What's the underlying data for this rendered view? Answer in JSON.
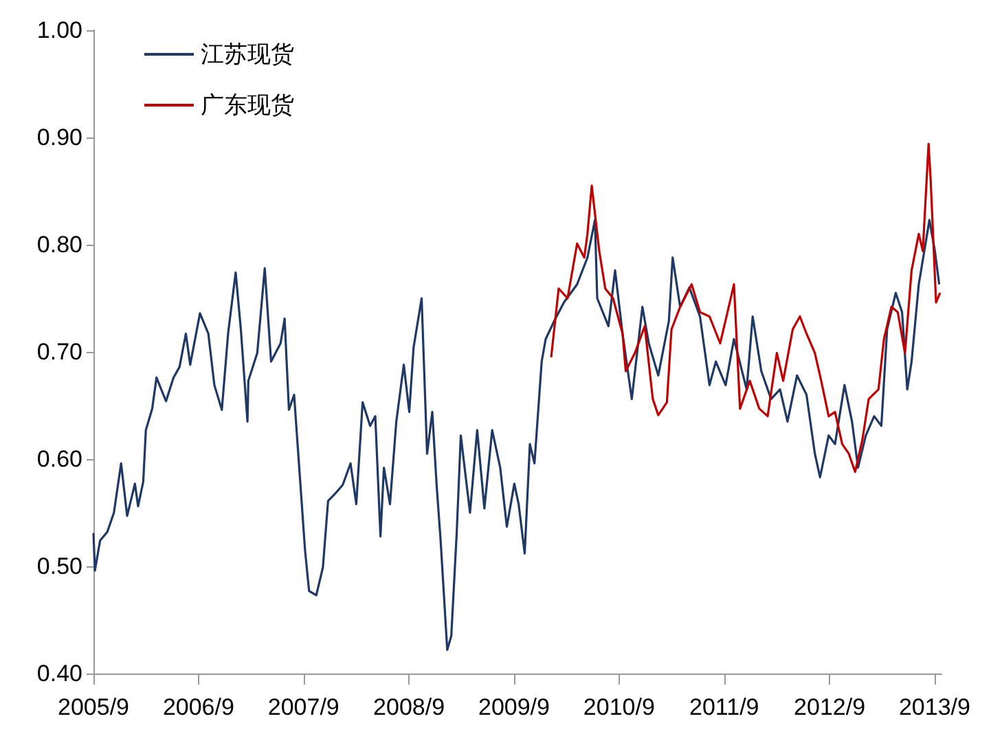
{
  "chart_data": {
    "type": "line",
    "xlim": [
      "2005-09-01",
      "2013-09-25"
    ],
    "ylim": [
      0.4,
      1.0
    ],
    "xticks": [
      {
        "value": "2005-09-01",
        "label": "2005/9"
      },
      {
        "value": "2006-09-01",
        "label": "2006/9"
      },
      {
        "value": "2007-09-01",
        "label": "2007/9"
      },
      {
        "value": "2008-09-01",
        "label": "2008/9"
      },
      {
        "value": "2009-09-01",
        "label": "2009/9"
      },
      {
        "value": "2010-09-01",
        "label": "2010/9"
      },
      {
        "value": "2011-09-01",
        "label": "2011/9"
      },
      {
        "value": "2012-09-01",
        "label": "2012/9"
      },
      {
        "value": "2013-09-01",
        "label": "2013/9"
      }
    ],
    "yticks": [
      {
        "value": 0.4,
        "label": "0.40"
      },
      {
        "value": 0.5,
        "label": "0.50"
      },
      {
        "value": 0.6,
        "label": "0.60"
      },
      {
        "value": 0.7,
        "label": "0.70"
      },
      {
        "value": 0.8,
        "label": "0.80"
      },
      {
        "value": 0.9,
        "label": "0.90"
      },
      {
        "value": 1.0,
        "label": "1.00"
      }
    ],
    "grid": false,
    "legend": "top left",
    "marker": "none",
    "line_style": "solid",
    "series": [
      {
        "name": "江苏现货",
        "color": "#1f3864",
        "x": [
          "2005-09-01",
          "2005-09-06",
          "2005-09-24",
          "2005-10-19",
          "2005-11-11",
          "2005-12-06",
          "2005-12-27",
          "2006-01-23",
          "2006-02-03",
          "2006-02-21",
          "2006-03-02",
          "2006-03-24",
          "2006-04-08",
          "2006-05-11",
          "2006-06-06",
          "2006-06-27",
          "2006-07-19",
          "2006-08-03",
          "2006-09-06",
          "2006-10-05",
          "2006-10-26",
          "2006-11-21",
          "2006-12-13",
          "2007-01-08",
          "2007-01-26",
          "2007-02-18",
          "2007-02-21",
          "2007-03-24",
          "2007-04-19",
          "2007-05-11",
          "2007-06-13",
          "2007-06-27",
          "2007-07-12",
          "2007-07-30",
          "2007-08-21",
          "2007-09-06",
          "2007-09-20",
          "2007-10-15",
          "2007-11-07",
          "2007-11-25",
          "2007-12-17",
          "2008-01-15",
          "2008-02-11",
          "2008-03-02",
          "2008-03-24",
          "2008-04-19",
          "2008-05-07",
          "2008-05-25",
          "2008-06-06",
          "2008-06-27",
          "2008-07-19",
          "2008-08-14",
          "2008-09-02",
          "2008-09-17",
          "2008-10-15",
          "2008-11-03",
          "2008-11-21",
          "2008-12-06",
          "2008-12-20",
          "2009-01-12",
          "2009-01-26",
          "2009-02-14",
          "2009-02-28",
          "2009-04-01",
          "2009-04-26",
          "2009-05-21",
          "2009-06-17",
          "2009-07-15",
          "2009-08-07",
          "2009-09-02",
          "2009-09-17",
          "2009-10-08",
          "2009-10-26",
          "2009-11-11",
          "2009-12-06",
          "2009-12-20",
          "2010-01-19",
          "2010-02-21",
          "2010-04-08",
          "2010-05-14",
          "2010-06-09",
          "2010-06-17",
          "2010-07-26",
          "2010-08-18",
          "2010-09-13",
          "2010-10-15",
          "2010-11-21",
          "2010-12-13",
          "2011-01-15",
          "2011-02-21",
          "2011-03-06",
          "2011-04-01",
          "2011-05-03",
          "2011-06-09",
          "2011-07-12",
          "2011-08-03",
          "2011-09-06",
          "2011-10-05",
          "2011-11-18",
          "2011-12-09",
          "2012-01-08",
          "2012-02-11",
          "2012-03-13",
          "2012-04-08",
          "2012-05-11",
          "2012-06-13",
          "2012-07-12",
          "2012-07-30",
          "2012-08-29",
          "2012-09-20",
          "2012-10-23",
          "2012-11-18",
          "2012-12-09",
          "2013-01-05",
          "2013-02-03",
          "2013-02-28",
          "2013-03-20",
          "2013-04-19",
          "2013-05-11",
          "2013-05-29",
          "2013-06-13",
          "2013-07-08",
          "2013-08-14",
          "2013-09-02",
          "2013-09-17"
        ],
        "values": [
          0.531,
          0.496,
          0.524,
          0.532,
          0.55,
          0.596,
          0.547,
          0.577,
          0.556,
          0.579,
          0.627,
          0.647,
          0.676,
          0.654,
          0.676,
          0.686,
          0.717,
          0.688,
          0.736,
          0.717,
          0.669,
          0.646,
          0.718,
          0.774,
          0.721,
          0.635,
          0.673,
          0.699,
          0.778,
          0.691,
          0.708,
          0.731,
          0.646,
          0.66,
          0.576,
          0.515,
          0.477,
          0.473,
          0.499,
          0.561,
          0.567,
          0.576,
          0.596,
          0.558,
          0.653,
          0.631,
          0.64,
          0.528,
          0.592,
          0.558,
          0.635,
          0.688,
          0.644,
          0.704,
          0.75,
          0.605,
          0.644,
          0.576,
          0.524,
          0.422,
          0.435,
          0.532,
          0.622,
          0.55,
          0.627,
          0.554,
          0.627,
          0.592,
          0.537,
          0.577,
          0.558,
          0.512,
          0.614,
          0.596,
          0.691,
          0.712,
          0.729,
          0.746,
          0.763,
          0.788,
          0.823,
          0.75,
          0.724,
          0.776,
          0.717,
          0.656,
          0.742,
          0.708,
          0.678,
          0.729,
          0.788,
          0.742,
          0.76,
          0.733,
          0.669,
          0.691,
          0.669,
          0.712,
          0.665,
          0.733,
          0.682,
          0.656,
          0.665,
          0.635,
          0.678,
          0.66,
          0.605,
          0.583,
          0.622,
          0.614,
          0.669,
          0.635,
          0.592,
          0.622,
          0.64,
          0.631,
          0.721,
          0.755,
          0.737,
          0.665,
          0.691,
          0.763,
          0.823,
          0.794,
          0.763
        ]
      },
      {
        "name": "广东现货",
        "color": "#c00000",
        "x": [
          "2010-01-08",
          "2010-02-03",
          "2010-03-06",
          "2010-04-08",
          "2010-05-03",
          "2010-05-14",
          "2010-05-29",
          "2010-06-24",
          "2010-07-15",
          "2010-08-11",
          "2010-09-13",
          "2010-09-24",
          "2010-10-26",
          "2010-11-29",
          "2010-12-27",
          "2011-01-15",
          "2011-02-14",
          "2011-03-02",
          "2011-04-01",
          "2011-05-11",
          "2011-06-09",
          "2011-07-12",
          "2011-08-18",
          "2011-09-09",
          "2011-10-05",
          "2011-10-26",
          "2011-11-29",
          "2012-01-01",
          "2012-01-30",
          "2012-03-02",
          "2012-03-24",
          "2012-04-26",
          "2012-05-21",
          "2012-06-13",
          "2012-07-12",
          "2012-08-03",
          "2012-08-29",
          "2012-09-20",
          "2012-10-15",
          "2012-11-07",
          "2012-11-29",
          "2012-12-24",
          "2013-01-15",
          "2013-02-18",
          "2013-03-09",
          "2013-04-04",
          "2013-04-26",
          "2013-05-21",
          "2013-06-13",
          "2013-07-08",
          "2013-07-22",
          "2013-08-11",
          "2013-08-18",
          "2013-09-06",
          "2013-09-20"
        ],
        "values": [
          0.695,
          0.759,
          0.75,
          0.801,
          0.788,
          0.81,
          0.855,
          0.794,
          0.759,
          0.75,
          0.717,
          0.682,
          0.699,
          0.724,
          0.656,
          0.641,
          0.653,
          0.721,
          0.742,
          0.763,
          0.737,
          0.733,
          0.708,
          0.733,
          0.763,
          0.647,
          0.673,
          0.647,
          0.64,
          0.699,
          0.673,
          0.721,
          0.733,
          0.717,
          0.699,
          0.673,
          0.64,
          0.644,
          0.614,
          0.605,
          0.588,
          0.618,
          0.656,
          0.665,
          0.712,
          0.742,
          0.737,
          0.699,
          0.776,
          0.81,
          0.794,
          0.894,
          0.862,
          0.746,
          0.755
        ]
      }
    ]
  }
}
